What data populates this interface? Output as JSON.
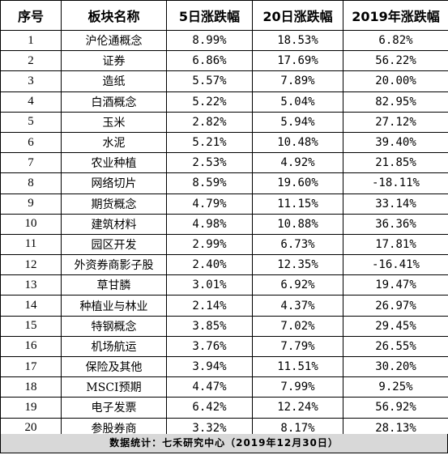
{
  "table": {
    "headers": [
      "序号",
      "板块名称",
      "5日涨跌幅",
      "20日涨跌幅",
      "2019年涨跌幅"
    ],
    "rows": [
      [
        "1",
        "沪伦通概念",
        "8.99%",
        "18.53%",
        "6.82%"
      ],
      [
        "2",
        "证券",
        "6.86%",
        "17.69%",
        "56.22%"
      ],
      [
        "3",
        "造纸",
        "5.57%",
        "7.89%",
        "20.00%"
      ],
      [
        "4",
        "白酒概念",
        "5.22%",
        "5.04%",
        "82.95%"
      ],
      [
        "5",
        "玉米",
        "2.82%",
        "5.94%",
        "27.12%"
      ],
      [
        "6",
        "水泥",
        "5.21%",
        "10.48%",
        "39.40%"
      ],
      [
        "7",
        "农业种植",
        "2.53%",
        "4.92%",
        "21.85%"
      ],
      [
        "8",
        "网络切片",
        "8.59%",
        "19.60%",
        "-18.11%"
      ],
      [
        "9",
        "期货概念",
        "4.79%",
        "11.15%",
        "33.14%"
      ],
      [
        "10",
        "建筑材料",
        "4.98%",
        "10.88%",
        "36.36%"
      ],
      [
        "11",
        "园区开发",
        "2.99%",
        "6.73%",
        "17.81%"
      ],
      [
        "12",
        "外资券商影子股",
        "2.40%",
        "12.35%",
        "-16.41%"
      ],
      [
        "13",
        "草甘膦",
        "3.01%",
        "6.92%",
        "19.47%"
      ],
      [
        "14",
        "种植业与林业",
        "2.14%",
        "4.37%",
        "26.97%"
      ],
      [
        "15",
        "特钢概念",
        "3.85%",
        "7.02%",
        "29.45%"
      ],
      [
        "16",
        "机场航运",
        "3.76%",
        "7.79%",
        "26.55%"
      ],
      [
        "17",
        "保险及其他",
        "3.94%",
        "11.51%",
        "30.20%"
      ],
      [
        "18",
        "MSCI预期",
        "4.47%",
        "7.99%",
        "9.25%"
      ],
      [
        "19",
        "电子发票",
        "6.42%",
        "12.24%",
        "56.92%"
      ],
      [
        "20",
        "参股券商",
        "3.32%",
        "8.17%",
        "28.13%"
      ]
    ]
  },
  "footer": {
    "text": "数据统计：七禾研究中心（2019年12月30日）"
  },
  "colors": {
    "grid_line": "#000000",
    "footer_background": "#d8d8d8",
    "text": "#000000"
  }
}
